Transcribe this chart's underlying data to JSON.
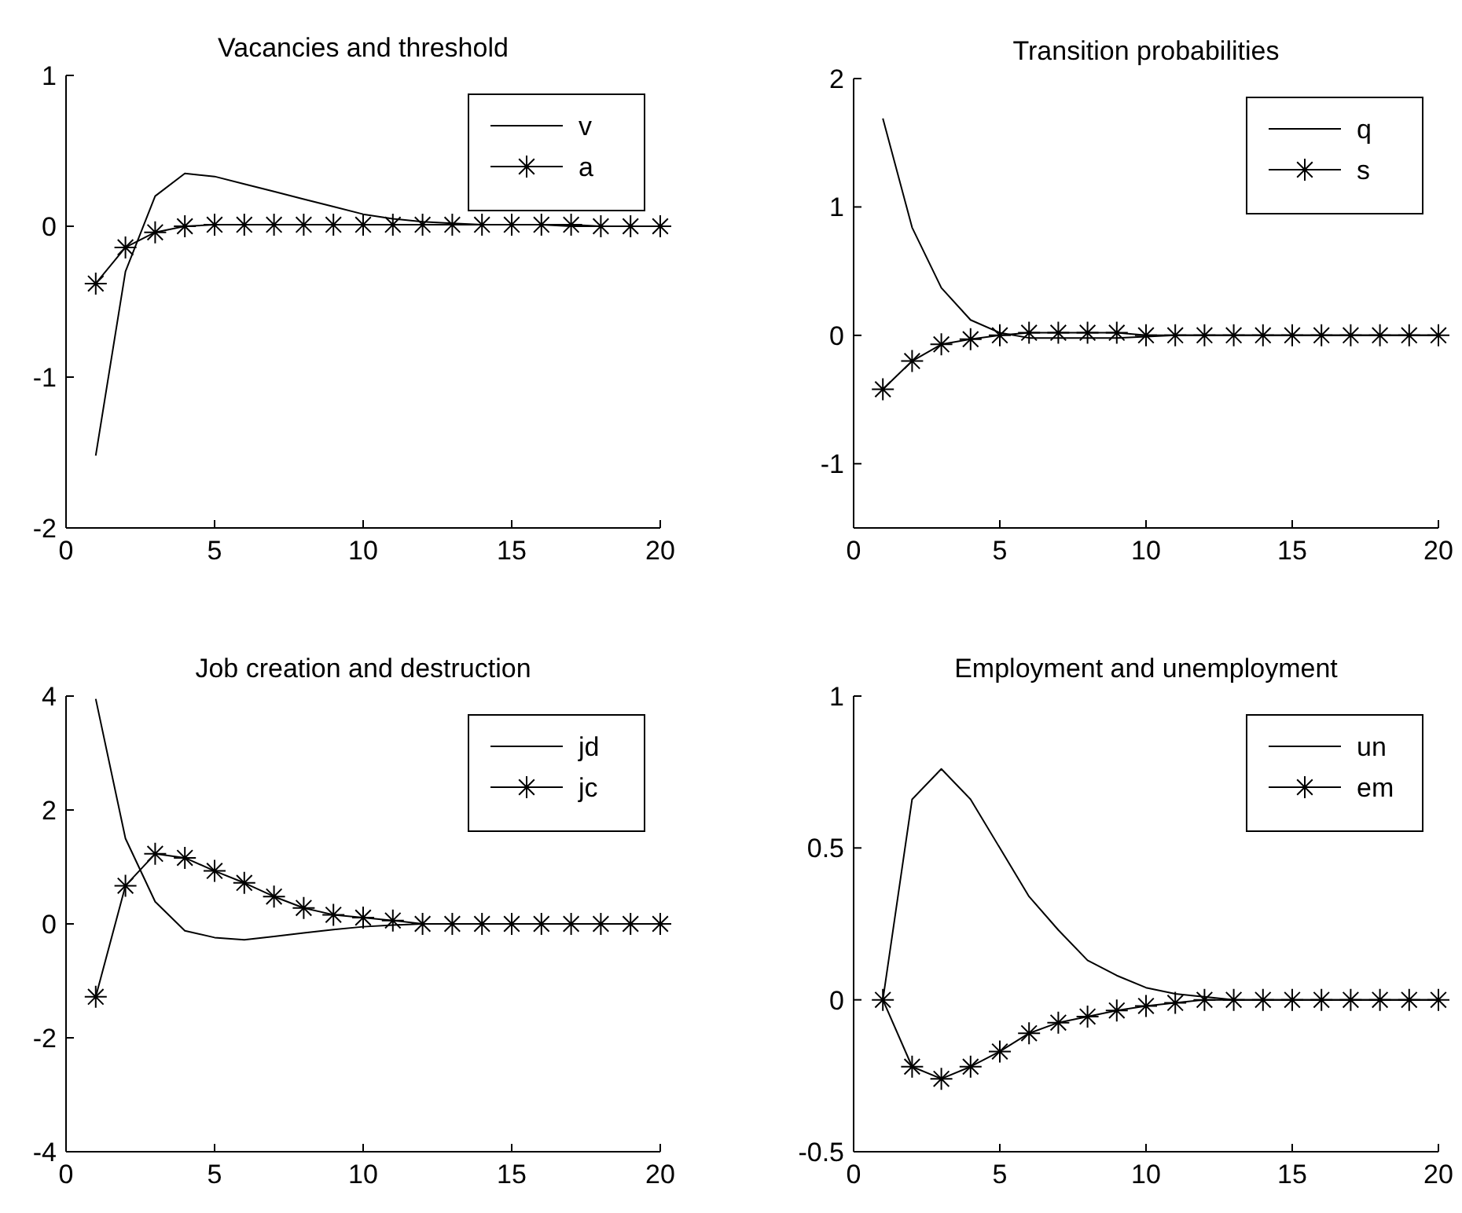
{
  "chart_data": [
    {
      "type": "line",
      "title": "Vacancies and threshold",
      "x": [
        1,
        2,
        3,
        4,
        5,
        6,
        7,
        8,
        9,
        10,
        11,
        12,
        13,
        14,
        15,
        16,
        17,
        18,
        19,
        20
      ],
      "xlim": [
        0,
        20
      ],
      "xticks": [
        0,
        5,
        10,
        15,
        20
      ],
      "ylim": [
        -2,
        1
      ],
      "yticks": [
        -2,
        -1,
        0,
        1
      ],
      "legend": "top right",
      "series": [
        {
          "name": "v",
          "color": "#000000",
          "values": [
            -1.52,
            -0.3,
            0.2,
            0.35,
            0.33,
            0.28,
            0.23,
            0.18,
            0.13,
            0.08,
            0.05,
            0.03,
            0.02,
            0.01,
            0.01,
            0.01,
            0,
            0,
            0,
            0
          ]
        },
        {
          "name": "a",
          "color": "#000000",
          "marker": "cross",
          "values": [
            -0.38,
            -0.14,
            -0.04,
            0,
            0.01,
            0.01,
            0.01,
            0.01,
            0.01,
            0.01,
            0.01,
            0.01,
            0.01,
            0.01,
            0.01,
            0.01,
            0.01,
            0,
            0,
            0
          ]
        }
      ]
    },
    {
      "type": "line",
      "title": "Transition probabilities",
      "x": [
        1,
        2,
        3,
        4,
        5,
        6,
        7,
        8,
        9,
        10,
        11,
        12,
        13,
        14,
        15,
        16,
        17,
        18,
        19,
        20
      ],
      "xlim": [
        0,
        20
      ],
      "xticks": [
        0,
        5,
        10,
        15,
        20
      ],
      "ylim": [
        -1.5,
        2
      ],
      "yticks": [
        -1,
        0,
        1,
        2
      ],
      "legend": "top right",
      "series": [
        {
          "name": "q",
          "color": "#000000",
          "values": [
            1.69,
            0.84,
            0.37,
            0.12,
            0.02,
            -0.02,
            -0.02,
            -0.02,
            -0.02,
            -0.01,
            0,
            0,
            0,
            0,
            0,
            0,
            0,
            0,
            0,
            0
          ]
        },
        {
          "name": "s",
          "color": "#000000",
          "marker": "cross",
          "values": [
            -0.42,
            -0.2,
            -0.07,
            -0.03,
            0,
            0.02,
            0.02,
            0.02,
            0.02,
            0,
            0,
            0,
            0,
            0,
            0,
            0,
            0,
            0,
            0,
            0
          ]
        }
      ]
    },
    {
      "type": "line",
      "title": "Job creation and destruction",
      "x": [
        1,
        2,
        3,
        4,
        5,
        6,
        7,
        8,
        9,
        10,
        11,
        12,
        13,
        14,
        15,
        16,
        17,
        18,
        19,
        20
      ],
      "xlim": [
        0,
        20
      ],
      "xticks": [
        0,
        5,
        10,
        15,
        20
      ],
      "ylim": [
        -4,
        4
      ],
      "yticks": [
        -4,
        -2,
        0,
        2,
        4
      ],
      "legend": "top right",
      "series": [
        {
          "name": "jd",
          "color": "#000000",
          "values": [
            3.95,
            1.5,
            0.39,
            -0.12,
            -0.24,
            -0.28,
            -0.22,
            -0.16,
            -0.1,
            -0.05,
            -0.02,
            0,
            0,
            0,
            0,
            0,
            0,
            0,
            0,
            0
          ]
        },
        {
          "name": "jc",
          "color": "#000000",
          "marker": "cross",
          "values": [
            -1.28,
            0.67,
            1.23,
            1.16,
            0.93,
            0.72,
            0.48,
            0.28,
            0.16,
            0.11,
            0.06,
            0,
            0,
            0,
            0,
            0,
            0,
            0,
            0,
            0
          ]
        }
      ]
    },
    {
      "type": "line",
      "title": "Employment and unemployment",
      "x": [
        1,
        2,
        3,
        4,
        5,
        6,
        7,
        8,
        9,
        10,
        11,
        12,
        13,
        14,
        15,
        16,
        17,
        18,
        19,
        20
      ],
      "xlim": [
        0,
        20
      ],
      "xticks": [
        0,
        5,
        10,
        15,
        20
      ],
      "ylim": [
        -0.5,
        1
      ],
      "yticks": [
        -0.5,
        0,
        0.5,
        1
      ],
      "legend": "top right",
      "series": [
        {
          "name": "un",
          "color": "#000000",
          "values": [
            0,
            0.66,
            0.76,
            0.66,
            0.5,
            0.34,
            0.23,
            0.13,
            0.08,
            0.04,
            0.02,
            0.01,
            0,
            0,
            0,
            0,
            0,
            0,
            0,
            0
          ]
        },
        {
          "name": "em",
          "color": "#000000",
          "marker": "cross",
          "values": [
            0,
            -0.22,
            -0.26,
            -0.22,
            -0.17,
            -0.11,
            -0.075,
            -0.055,
            -0.035,
            -0.02,
            -0.01,
            0,
            0,
            0,
            0,
            0,
            0,
            0,
            0,
            0
          ]
        }
      ]
    }
  ]
}
